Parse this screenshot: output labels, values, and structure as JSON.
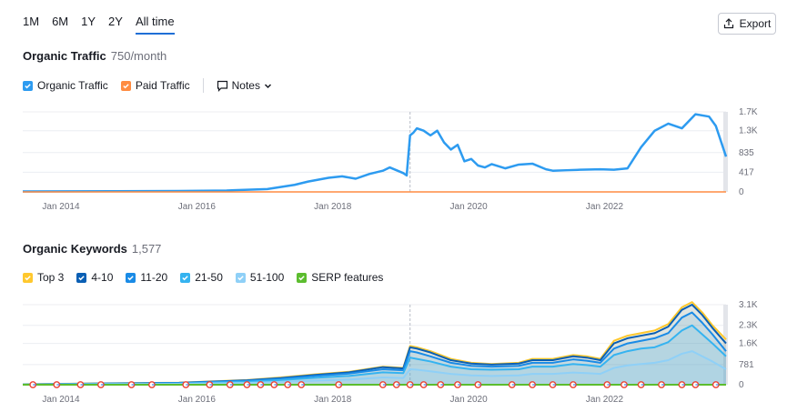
{
  "range_tabs": [
    {
      "label": "1M",
      "active": false
    },
    {
      "label": "6M",
      "active": false
    },
    {
      "label": "1Y",
      "active": false
    },
    {
      "label": "2Y",
      "active": false
    },
    {
      "label": "All time",
      "active": true
    }
  ],
  "export_label": "Export",
  "traffic": {
    "title": "Organic Traffic",
    "value": "750/month",
    "legend": [
      {
        "label": "Organic Traffic",
        "color": "#2d9bf0"
      },
      {
        "label": "Paid Traffic",
        "color": "#ff8c42"
      }
    ],
    "notes_label": "Notes"
  },
  "keywords": {
    "title": "Organic Keywords",
    "value": "1,577",
    "legend": [
      {
        "label": "Top 3",
        "color": "#ffc82e"
      },
      {
        "label": "4-10",
        "color": "#0a5fb4"
      },
      {
        "label": "11-20",
        "color": "#1a8be6"
      },
      {
        "label": "21-50",
        "color": "#35b3f0"
      },
      {
        "label": "51-100",
        "color": "#8fd0f7"
      },
      {
        "label": "SERP features",
        "color": "#5cbd2f"
      }
    ]
  },
  "chart_data": [
    {
      "type": "line",
      "series": [
        {
          "name": "Organic Traffic",
          "color": "#2d9bf0",
          "x": [
            2013.7,
            2015.0,
            2016.0,
            2016.7,
            2017.3,
            2017.7,
            2017.9,
            2018.2,
            2018.4,
            2018.6,
            2018.8,
            2019.0,
            2019.1,
            2019.3,
            2019.35,
            2019.4,
            2019.45,
            2019.5,
            2019.6,
            2019.7,
            2019.8,
            2019.9,
            2020.0,
            2020.1,
            2020.2,
            2020.3,
            2020.4,
            2020.5,
            2020.6,
            2020.8,
            2021.0,
            2021.2,
            2021.4,
            2021.5,
            2021.7,
            2021.9,
            2022.2,
            2022.4,
            2022.6,
            2022.8,
            2023.0,
            2023.2,
            2023.4,
            2023.6,
            2023.8,
            2023.9,
            2024.05
          ],
          "values": [
            10,
            15,
            20,
            30,
            60,
            150,
            220,
            300,
            330,
            280,
            380,
            450,
            520,
            400,
            350,
            1200,
            1260,
            1350,
            1300,
            1200,
            1300,
            1050,
            900,
            1000,
            650,
            700,
            560,
            520,
            590,
            500,
            580,
            600,
            480,
            450,
            460,
            470,
            480,
            470,
            500,
            950,
            1300,
            1450,
            1350,
            1650,
            1600,
            1400,
            750
          ]
        },
        {
          "name": "Paid Traffic",
          "color": "#ff8c42",
          "x": [
            2013.7,
            2024.05
          ],
          "values": [
            0,
            0
          ]
        }
      ],
      "x_ticks": [
        "Jan 2014",
        "Jan 2016",
        "Jan 2018",
        "Jan 2020",
        "Jan 2022"
      ],
      "x_tick_values": [
        2014,
        2016,
        2018,
        2020,
        2022
      ],
      "y_ticks": [
        "1.7K",
        "1.3K",
        "835",
        "417",
        "0"
      ],
      "y_tick_values": [
        1700,
        1300,
        835,
        417,
        0
      ],
      "xlim": [
        2013.7,
        2024.05
      ],
      "ylim": [
        0,
        1700
      ],
      "grid": true
    },
    {
      "type": "area",
      "categories_x": [
        2013.7,
        2016.0,
        2017.0,
        2017.5,
        2018.0,
        2018.5,
        2019.0,
        2019.3,
        2019.4,
        2019.5,
        2019.7,
        2020.0,
        2020.3,
        2020.6,
        2021.0,
        2021.2,
        2021.5,
        2021.8,
        2022.0,
        2022.2,
        2022.4,
        2022.6,
        2022.8,
        2023.0,
        2023.2,
        2023.4,
        2023.55,
        2023.7,
        2023.85,
        2024.05
      ],
      "series": [
        {
          "name": "Top 3",
          "color": "#ffc82e",
          "values": [
            20,
            80,
            180,
            280,
            400,
            500,
            700,
            650,
            1500,
            1450,
            1300,
            1000,
            850,
            800,
            850,
            1000,
            1000,
            1150,
            1100,
            1000,
            1700,
            1900,
            2000,
            2100,
            2350,
            3000,
            3200,
            2800,
            2300,
            1750
          ]
        },
        {
          "name": "4-10",
          "color": "#0a5fb4",
          "values": [
            18,
            75,
            170,
            260,
            380,
            480,
            680,
            630,
            1450,
            1400,
            1250,
            950,
            820,
            780,
            820,
            950,
            950,
            1100,
            1050,
            950,
            1600,
            1800,
            1900,
            2000,
            2250,
            2900,
            3100,
            2700,
            2200,
            1600
          ]
        },
        {
          "name": "11-20",
          "color": "#1a8be6",
          "values": [
            15,
            65,
            150,
            230,
            340,
            430,
            600,
            560,
            1300,
            1250,
            1100,
            850,
            730,
            700,
            730,
            850,
            850,
            980,
            930,
            850,
            1400,
            1600,
            1700,
            1800,
            2000,
            2600,
            2800,
            2400,
            1950,
            1300
          ]
        },
        {
          "name": "21-50",
          "color": "#35b3f0",
          "values": [
            12,
            50,
            120,
            180,
            270,
            340,
            480,
            450,
            1050,
            1000,
            900,
            700,
            600,
            580,
            600,
            700,
            700,
            800,
            760,
            700,
            1150,
            1300,
            1400,
            1450,
            1650,
            2100,
            2300,
            1950,
            1600,
            1100
          ]
        },
        {
          "name": "51-100",
          "color": "#8fd0f7",
          "values": [
            8,
            30,
            70,
            110,
            160,
            200,
            280,
            260,
            600,
            580,
            520,
            420,
            360,
            340,
            360,
            420,
            420,
            470,
            450,
            420,
            650,
            750,
            800,
            850,
            950,
            1200,
            1300,
            1100,
            900,
            600
          ]
        }
      ],
      "x_ticks": [
        "Jan 2014",
        "Jan 2016",
        "Jan 2018",
        "Jan 2020",
        "Jan 2022"
      ],
      "x_tick_values": [
        2014,
        2016,
        2018,
        2020,
        2022
      ],
      "y_ticks": [
        "3.1K",
        "2.3K",
        "1.6K",
        "781",
        "0"
      ],
      "y_tick_values": [
        3100,
        2300,
        1600,
        781,
        0
      ],
      "xlim": [
        2013.7,
        2024.05
      ],
      "ylim": [
        0,
        3100
      ],
      "grid": true,
      "serp_marker_x": [
        2013.85,
        2014.2,
        2014.55,
        2014.85,
        2015.3,
        2015.6,
        2016.1,
        2016.45,
        2016.75,
        2017.0,
        2017.2,
        2017.4,
        2017.6,
        2017.8,
        2018.35,
        2019.0,
        2019.2,
        2019.4,
        2019.6,
        2019.85,
        2020.1,
        2020.4,
        2020.9,
        2021.2,
        2021.5,
        2021.8,
        2022.3,
        2022.55,
        2022.8,
        2023.1,
        2023.4,
        2023.6,
        2023.9
      ]
    }
  ]
}
